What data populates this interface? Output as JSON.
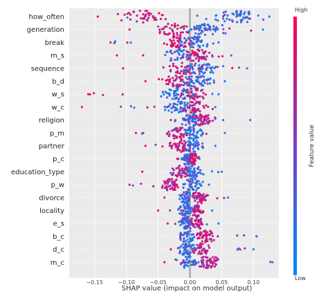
{
  "chart_data": {
    "type": "scatter",
    "subtype": "shap-beeswarm",
    "xlabel": "SHAP value (impact on model output)",
    "xlim": [
      -0.19,
      0.14
    ],
    "xticks": [
      -0.15,
      -0.1,
      -0.05,
      0.0,
      0.05,
      0.1
    ],
    "xtick_labels": [
      "−0.15",
      "−0.10",
      "−0.05",
      "0.00",
      "0.05",
      "0.10"
    ],
    "grid": true,
    "zero_line": 0.0,
    "colorbar": {
      "label": "Feature value",
      "high_label": "High",
      "low_label": "Low",
      "high_color": "#ff0052",
      "mid_color": "#7a3fc4",
      "low_color": "#008bfb"
    },
    "features": [
      {
        "name": "how_often",
        "min": -0.145,
        "max": 0.125,
        "low_center": 0.075,
        "high_center": -0.075,
        "spread": 0.035
      },
      {
        "name": "generation",
        "min": -0.095,
        "max": 0.115,
        "low_center": 0.03,
        "high_center": -0.025,
        "spread": 0.03
      },
      {
        "name": "break",
        "min": -0.125,
        "max": 0.045,
        "low_center": 0.01,
        "high_center": -0.02,
        "spread": 0.02
      },
      {
        "name": "m_s",
        "min": -0.115,
        "max": 0.065,
        "low_center": -0.02,
        "high_center": 0.01,
        "spread": 0.02
      },
      {
        "name": "sequence",
        "min": -0.105,
        "max": 0.09,
        "low_center": 0.015,
        "high_center": -0.01,
        "spread": 0.03
      },
      {
        "name": "b_d",
        "min": -0.07,
        "max": 0.055,
        "low_center": 0.01,
        "high_center": -0.02,
        "spread": 0.02
      },
      {
        "name": "w_s",
        "min": -0.16,
        "max": 0.045,
        "low_center": -0.02,
        "high_center": 0.01,
        "spread": 0.02
      },
      {
        "name": "w_c",
        "min": -0.17,
        "max": 0.04,
        "low_center": -0.02,
        "high_center": 0.01,
        "spread": 0.02
      },
      {
        "name": "religion",
        "min": -0.03,
        "max": 0.095,
        "low_center": 0.0,
        "high_center": 0.02,
        "spread": 0.015
      },
      {
        "name": "p_m",
        "min": -0.085,
        "max": 0.055,
        "low_center": 0.005,
        "high_center": -0.02,
        "spread": 0.015
      },
      {
        "name": "partner",
        "min": -0.07,
        "max": 0.04,
        "low_center": 0.005,
        "high_center": -0.015,
        "spread": 0.015
      },
      {
        "name": "p_c",
        "min": -0.02,
        "max": 0.015,
        "low_center": -0.005,
        "high_center": 0.005,
        "spread": 0.008
      },
      {
        "name": "education_type",
        "min": -0.075,
        "max": 0.05,
        "low_center": 0.005,
        "high_center": -0.015,
        "spread": 0.015
      },
      {
        "name": "p_w",
        "min": -0.095,
        "max": 0.03,
        "low_center": 0.005,
        "high_center": -0.03,
        "spread": 0.015
      },
      {
        "name": "divorce",
        "min": -0.04,
        "max": 0.06,
        "low_center": -0.005,
        "high_center": 0.015,
        "spread": 0.012
      },
      {
        "name": "locality",
        "min": -0.05,
        "max": 0.035,
        "low_center": -0.005,
        "high_center": 0.01,
        "spread": 0.012
      },
      {
        "name": "e_s",
        "min": -0.035,
        "max": 0.045,
        "low_center": -0.005,
        "high_center": 0.01,
        "spread": 0.012
      },
      {
        "name": "b_c",
        "min": -0.015,
        "max": 0.105,
        "low_center": -0.005,
        "high_center": 0.025,
        "spread": 0.015
      },
      {
        "name": "d_c",
        "min": -0.03,
        "max": 0.1,
        "low_center": -0.005,
        "high_center": 0.02,
        "spread": 0.015
      },
      {
        "name": "m_c",
        "min": -0.04,
        "max": 0.13,
        "low_center": 0.0,
        "high_center": 0.03,
        "spread": 0.02
      }
    ]
  }
}
